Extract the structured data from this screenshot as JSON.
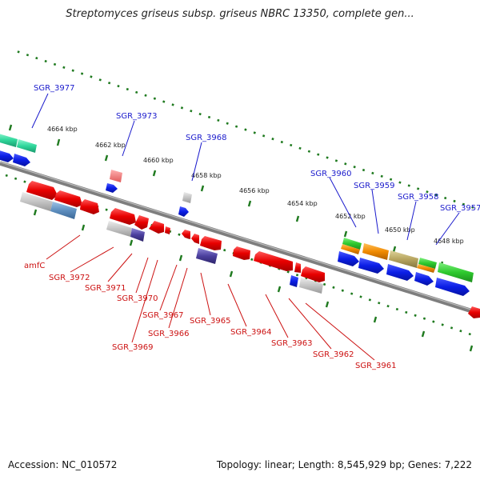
{
  "header": {
    "title": "Streptomyces griseus subsp. griseus NBRC 13350, complete gen..."
  },
  "footer": {
    "accession": "Accession: NC_010572",
    "topology": "Topology: linear; Length: 8,545,929 bp; Genes: 7,222"
  },
  "scale_labels": [
    "4664 kbp",
    "4662 kbp",
    "4660 kbp",
    "4658 kbp",
    "4656 kbp",
    "4654 kbp",
    "4652 kbp",
    "4650 kbp",
    "4648 kbp"
  ],
  "top_genes": [
    "SGR_3977",
    "SGR_3973",
    "SGR_3968",
    "SGR_3960",
    "SGR_3959",
    "SGR_3958",
    "SGR_3957"
  ],
  "bottom_genes": [
    "amfC",
    "SGR_3972",
    "SGR_3971",
    "SGR_3970",
    "SGR_3969",
    "SGR_3967",
    "SGR_3966",
    "SGR_3965",
    "SGR_3964",
    "SGR_3963",
    "SGR_3962",
    "SGR_3961"
  ],
  "colors": {
    "top_label": "#1a1acc",
    "bottom_label": "#cc1111",
    "axis": "#8a8a8a",
    "dots": "#1f7a1f"
  }
}
